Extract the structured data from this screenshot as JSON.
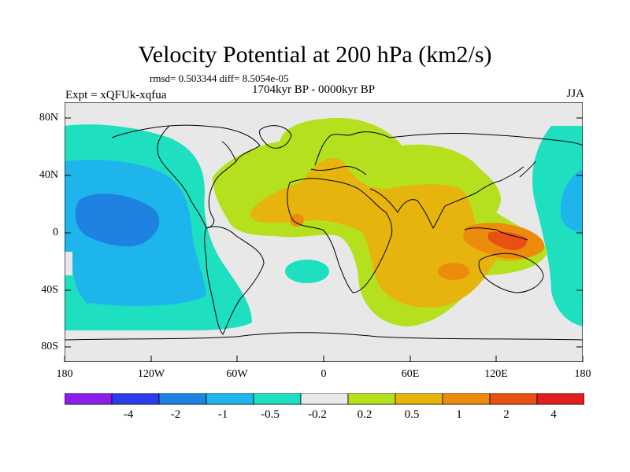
{
  "header": {
    "title": "Velocity Potential at 200 hPa (km2/s)",
    "stats": "rmsd= 0.503344 diff= 8.5054e-05",
    "period": "1704kyr BP - 0000kyr BP",
    "expt": "Expt = xQFUk-xqfua",
    "season": "JJA"
  },
  "axes": {
    "lat_ticks": [
      "80N",
      "40N",
      "0",
      "40S",
      "80S"
    ],
    "lon_ticks": [
      "180",
      "120W",
      "60W",
      "0",
      "60E",
      "120E",
      "180"
    ]
  },
  "colorbar": {
    "labels": [
      "-4",
      "-2",
      "-1",
      "-0.5",
      "-0.2",
      "0.2",
      "0.5",
      "1",
      "2",
      "4"
    ],
    "colors": [
      "#8a1ee8",
      "#2b3ce8",
      "#1e82e0",
      "#1eb4ec",
      "#1ee0c0",
      "#e8e8e8",
      "#b4e01e",
      "#e6b40c",
      "#ec8c0c",
      "#e85014",
      "#e01e1e"
    ]
  },
  "map": {
    "regions": [
      {
        "name": "pacific-negative-minus05",
        "level": -0.5
      },
      {
        "name": "pacific-negative-minus1",
        "level": -1
      },
      {
        "name": "pacific-negative-minus2",
        "level": -2
      },
      {
        "name": "eurafrica-positive-02",
        "level": 0.2
      },
      {
        "name": "indian-positive-05",
        "level": 0.5
      },
      {
        "name": "indian-positive-1",
        "level": 1
      },
      {
        "name": "maritime-positive-2",
        "level": 2
      }
    ]
  }
}
